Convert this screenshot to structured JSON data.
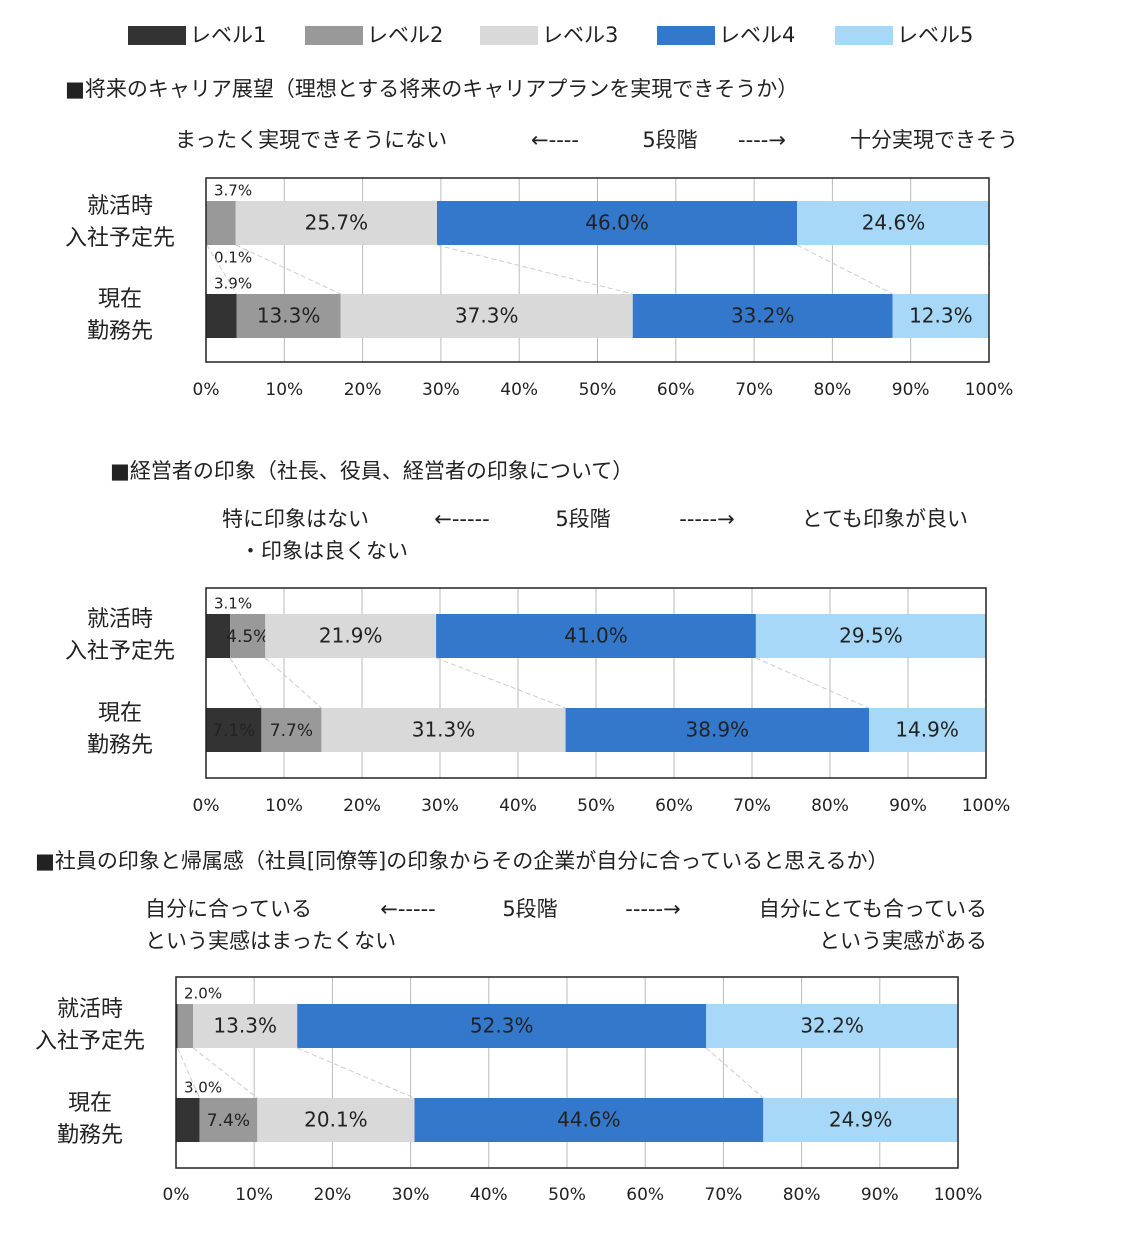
{
  "legend": [
    {
      "name": "レベル1",
      "color": "#333333"
    },
    {
      "name": "レベル2",
      "color": "#999999"
    },
    {
      "name": "レベル3",
      "color": "#d9d9d9"
    },
    {
      "name": "レベル4",
      "color": "#3478cc"
    },
    {
      "name": "レベル5",
      "color": "#a7d8f7"
    }
  ],
  "chart_data": [
    {
      "type": "stacked-barh",
      "title": "■将来のキャリア展望（理想とする将来のキャリアプランを実現できそうか）",
      "scale_left": [
        "まったく実現できそうにない"
      ],
      "arrow_left": "←----",
      "scale_mid": "5段階",
      "arrow_right": "----→",
      "scale_right": [
        "十分実現できそう"
      ],
      "categories": [
        [
          "就活時",
          "入社予定先"
        ],
        [
          "現在",
          "勤務先"
        ]
      ],
      "series": [
        {
          "values": [
            0.1,
            3.9
          ],
          "value_labels": [
            "0.1%",
            "3.9%"
          ]
        },
        {
          "values": [
            3.7,
            13.3
          ],
          "value_labels": [
            "3.7%",
            "13.3%"
          ]
        },
        {
          "values": [
            25.7,
            37.3
          ],
          "value_labels": [
            "25.7%",
            "37.3%"
          ]
        },
        {
          "values": [
            46.0,
            33.2
          ],
          "value_labels": [
            "46.0%",
            "33.2%"
          ]
        },
        {
          "values": [
            24.6,
            12.3
          ],
          "value_labels": [
            "24.6%",
            "12.3%"
          ]
        }
      ],
      "xlim": [
        0,
        100
      ],
      "xticks": [
        {
          "value": 0,
          "label": "0%"
        },
        {
          "value": 10,
          "label": "10%"
        },
        {
          "value": 20,
          "label": "20%"
        },
        {
          "value": 30,
          "label": "30%"
        },
        {
          "value": 40,
          "label": "40%"
        },
        {
          "value": 50,
          "label": "50%"
        },
        {
          "value": 60,
          "label": "60%"
        },
        {
          "value": 70,
          "label": "70%"
        },
        {
          "value": 80,
          "label": "80%"
        },
        {
          "value": 90,
          "label": "90%"
        },
        {
          "value": 100,
          "label": "100%"
        }
      ],
      "grid": true
    },
    {
      "type": "stacked-barh",
      "title": "■経営者の印象（社長、役員、経営者の印象について）",
      "scale_left": [
        "特に印象はない",
        "・印象は良くない"
      ],
      "arrow_left": "←-----",
      "scale_mid": "5段階",
      "arrow_right": "-----→",
      "scale_right": [
        "とても印象が良い"
      ],
      "categories": [
        [
          "就活時",
          "入社予定先"
        ],
        [
          "現在",
          "勤務先"
        ]
      ],
      "series": [
        {
          "values": [
            3.1,
            7.1
          ],
          "value_labels": [
            "3.1%",
            "7.1%"
          ]
        },
        {
          "values": [
            4.5,
            7.7
          ],
          "value_labels": [
            "4.5%",
            "7.7%"
          ]
        },
        {
          "values": [
            21.9,
            31.3
          ],
          "value_labels": [
            "21.9%",
            "31.3%"
          ]
        },
        {
          "values": [
            41.0,
            38.9
          ],
          "value_labels": [
            "41.0%",
            "38.9%"
          ]
        },
        {
          "values": [
            29.5,
            14.9
          ],
          "value_labels": [
            "29.5%",
            "14.9%"
          ]
        }
      ],
      "xlim": [
        0,
        100
      ],
      "xticks": [
        {
          "value": 0,
          "label": "0%"
        },
        {
          "value": 10,
          "label": "10%"
        },
        {
          "value": 20,
          "label": "20%"
        },
        {
          "value": 30,
          "label": "30%"
        },
        {
          "value": 40,
          "label": "40%"
        },
        {
          "value": 50,
          "label": "50%"
        },
        {
          "value": 60,
          "label": "60%"
        },
        {
          "value": 70,
          "label": "70%"
        },
        {
          "value": 80,
          "label": "80%"
        },
        {
          "value": 90,
          "label": "90%"
        },
        {
          "value": 100,
          "label": "100%"
        }
      ],
      "grid": true
    },
    {
      "type": "stacked-barh",
      "title": "■社員の印象と帰属感（社員[同僚等]の印象からその企業が自分に合っていると思えるか）",
      "scale_left": [
        "自分に合っている",
        "という実感はまったくない"
      ],
      "arrow_left": "←-----",
      "scale_mid": "5段階",
      "arrow_right": "-----→",
      "scale_right": [
        "自分にとても合っている",
        "という実感がある"
      ],
      "categories": [
        [
          "就活時",
          "入社予定先"
        ],
        [
          "現在",
          "勤務先"
        ]
      ],
      "series": [
        {
          "values": [
            0.2,
            3.0
          ],
          "value_labels": [
            null,
            "3.0%"
          ]
        },
        {
          "values": [
            2.0,
            7.4
          ],
          "value_labels": [
            "2.0%",
            "7.4%"
          ]
        },
        {
          "values": [
            13.3,
            20.1
          ],
          "value_labels": [
            "13.3%",
            "20.1%"
          ]
        },
        {
          "values": [
            52.3,
            44.6
          ],
          "value_labels": [
            "52.3%",
            "44.6%"
          ]
        },
        {
          "values": [
            32.2,
            24.9
          ],
          "value_labels": [
            "32.2%",
            "24.9%"
          ]
        }
      ],
      "xlim": [
        0,
        100
      ],
      "xticks": [
        {
          "value": 0,
          "label": "0%"
        },
        {
          "value": 10,
          "label": "10%"
        },
        {
          "value": 20,
          "label": "20%"
        },
        {
          "value": 30,
          "label": "30%"
        },
        {
          "value": 40,
          "label": "40%"
        },
        {
          "value": 50,
          "label": "50%"
        },
        {
          "value": 60,
          "label": "60%"
        },
        {
          "value": 70,
          "label": "70%"
        },
        {
          "value": 80,
          "label": "80%"
        },
        {
          "value": 90,
          "label": "90%"
        },
        {
          "value": 100,
          "label": "100%"
        }
      ],
      "grid": true
    }
  ]
}
